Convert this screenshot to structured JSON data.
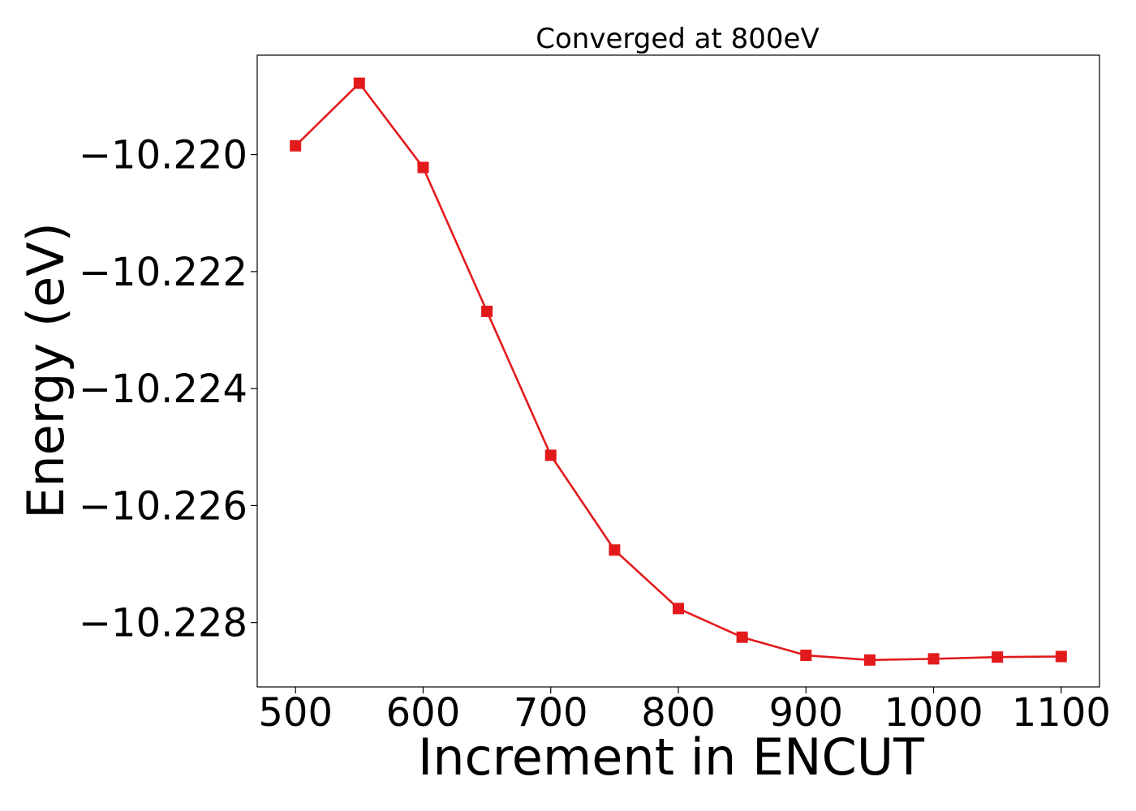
{
  "chart_data": {
    "type": "line",
    "title": "Converged at 800eV",
    "xlabel": "Increment in ENCUT",
    "ylabel": "Energy (eV)",
    "xlim": [
      470,
      1130
    ],
    "ylim": [
      -10.2291,
      -10.2183
    ],
    "x_ticks": [
      500,
      600,
      700,
      800,
      900,
      1000,
      1100
    ],
    "x_tick_labels": [
      "500",
      "600",
      "700",
      "800",
      "900",
      "1000",
      "1100"
    ],
    "y_ticks": [
      -10.22,
      -10.222,
      -10.224,
      -10.226,
      -10.228
    ],
    "y_tick_labels": [
      "−10.220",
      "−10.222",
      "−10.224",
      "−10.226",
      "−10.228"
    ],
    "grid": false,
    "series": [
      {
        "color": "#e31a1c",
        "marker": "square",
        "x": [
          500,
          550,
          600,
          650,
          700,
          750,
          800,
          850,
          900,
          950,
          1000,
          1050,
          1100
        ],
        "y": [
          -10.21985,
          -10.21878,
          -10.22022,
          -10.22268,
          -10.22514,
          -10.22676,
          -10.22776,
          -10.22825,
          -10.22856,
          -10.22864,
          -10.22862,
          -10.22859,
          -10.22858
        ]
      }
    ]
  }
}
